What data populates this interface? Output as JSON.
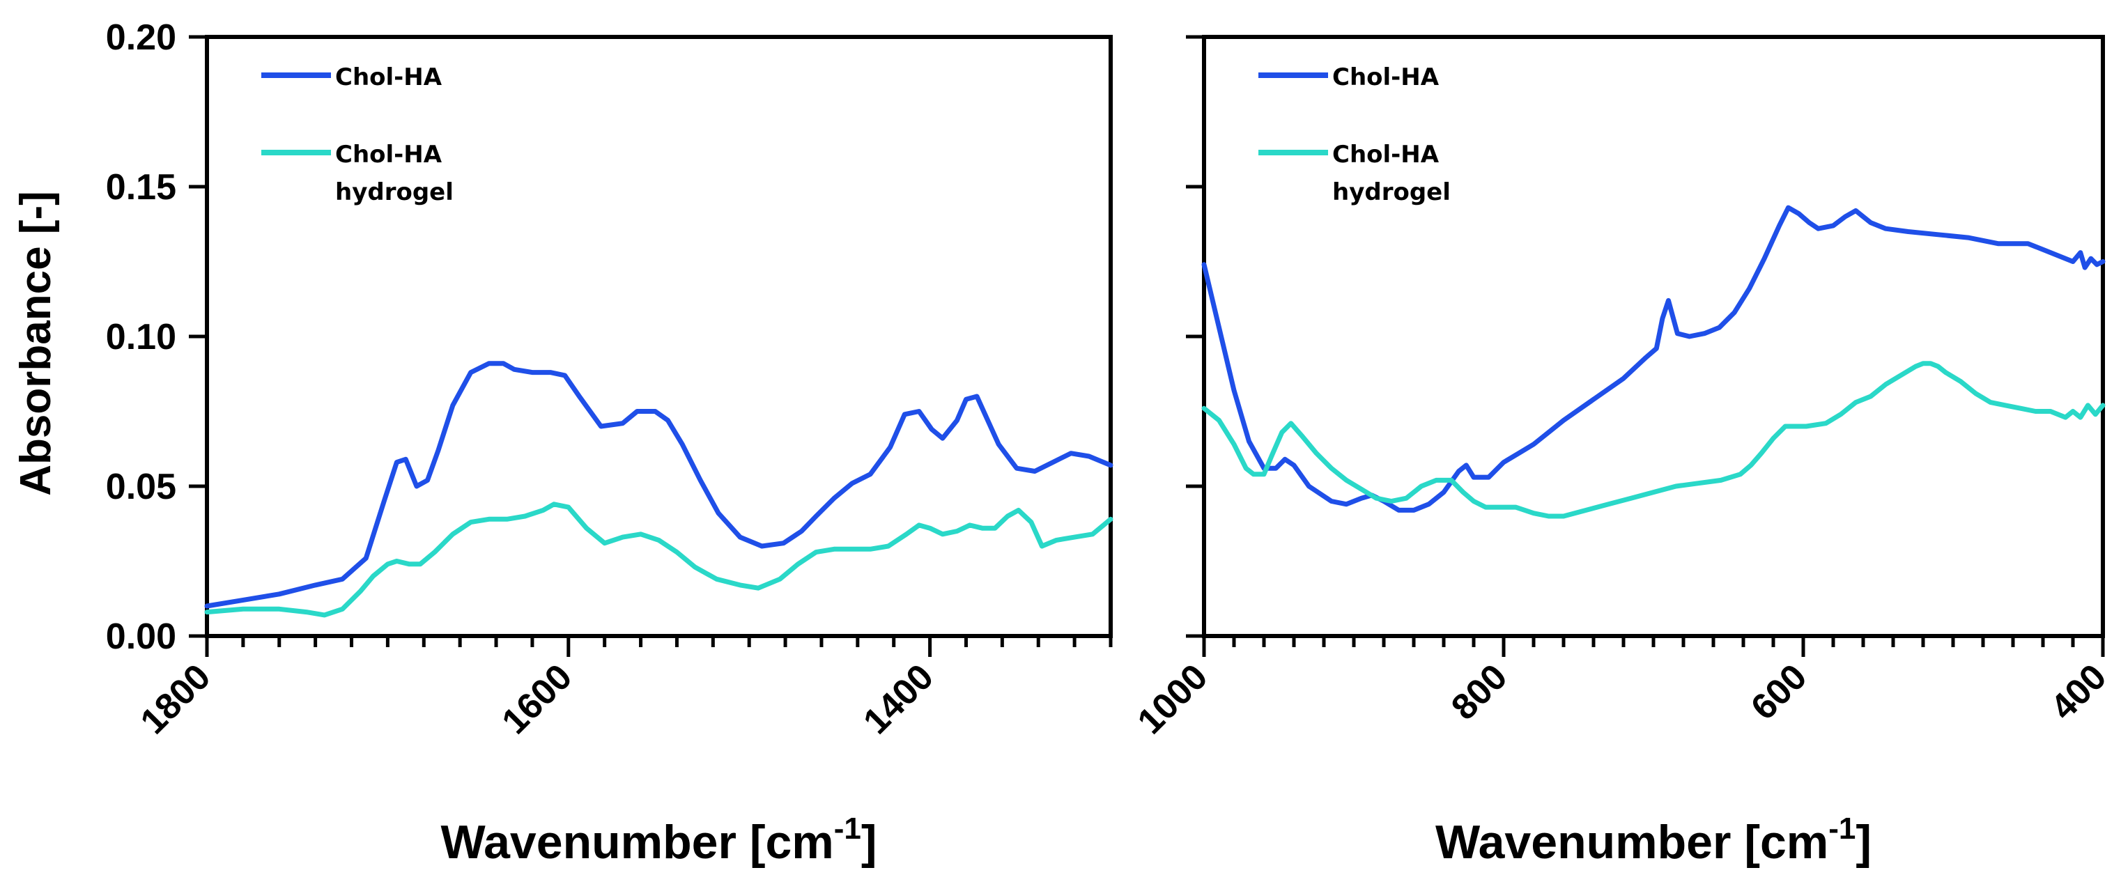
{
  "chart_data": [
    {
      "type": "line",
      "panel": "left",
      "title": "",
      "xlabel_main": "Wavenumber [cm",
      "xlabel_sup": "-1",
      "xlabel_end": "]",
      "ylabel": "Absorbance [-]",
      "xlim": [
        1800,
        1300
      ],
      "ylim": [
        0,
        0.2
      ],
      "x_major_ticks": [
        1800,
        1600,
        1400
      ],
      "x_tick_labels": [
        "1800",
        "1600",
        "1400"
      ],
      "x_minor_step": 20,
      "y_major_ticks": [
        0,
        0.05,
        0.1,
        0.15,
        0.2
      ],
      "y_tick_labels": [
        "0.00",
        "0.05",
        "0.10",
        "0.15",
        "0.20"
      ],
      "legend_location": "top-left",
      "series": [
        {
          "name": "Chol-HA",
          "legend_lines": [
            "Chol-HA"
          ],
          "color": "#1f4fe8",
          "x": [
            1800,
            1780,
            1760,
            1740,
            1725,
            1712,
            1702,
            1695,
            1690,
            1684,
            1678,
            1672,
            1664,
            1654,
            1644,
            1636,
            1630,
            1620,
            1610,
            1602,
            1594,
            1582,
            1570,
            1562,
            1552,
            1545,
            1537,
            1527,
            1517,
            1505,
            1493,
            1481,
            1471,
            1463,
            1453,
            1443,
            1433,
            1422,
            1414,
            1406,
            1399,
            1393,
            1385,
            1380,
            1374,
            1368,
            1362,
            1352,
            1342,
            1332,
            1322,
            1312,
            1300
          ],
          "y": [
            0.01,
            0.012,
            0.014,
            0.017,
            0.019,
            0.026,
            0.045,
            0.058,
            0.059,
            0.05,
            0.052,
            0.062,
            0.077,
            0.088,
            0.091,
            0.091,
            0.089,
            0.088,
            0.088,
            0.087,
            0.08,
            0.07,
            0.071,
            0.075,
            0.075,
            0.072,
            0.064,
            0.052,
            0.041,
            0.033,
            0.03,
            0.031,
            0.035,
            0.04,
            0.046,
            0.051,
            0.054,
            0.063,
            0.074,
            0.075,
            0.069,
            0.066,
            0.072,
            0.079,
            0.08,
            0.072,
            0.064,
            0.056,
            0.055,
            0.058,
            0.061,
            0.06,
            0.057
          ]
        },
        {
          "name": "Chol-HA hydrogel",
          "legend_lines": [
            "Chol-HA",
            "hydrogel"
          ],
          "color": "#2ad8c8",
          "x": [
            1800,
            1780,
            1760,
            1745,
            1735,
            1725,
            1715,
            1708,
            1700,
            1695,
            1688,
            1682,
            1674,
            1664,
            1654,
            1644,
            1634,
            1624,
            1614,
            1608,
            1600,
            1590,
            1580,
            1570,
            1560,
            1550,
            1540,
            1530,
            1518,
            1505,
            1495,
            1483,
            1473,
            1463,
            1453,
            1443,
            1433,
            1423,
            1413,
            1406,
            1400,
            1393,
            1385,
            1378,
            1371,
            1364,
            1357,
            1351,
            1344,
            1338,
            1330,
            1320,
            1310,
            1300
          ],
          "y": [
            0.008,
            0.009,
            0.009,
            0.008,
            0.007,
            0.009,
            0.015,
            0.02,
            0.024,
            0.025,
            0.024,
            0.024,
            0.028,
            0.034,
            0.038,
            0.039,
            0.039,
            0.04,
            0.042,
            0.044,
            0.043,
            0.036,
            0.031,
            0.033,
            0.034,
            0.032,
            0.028,
            0.023,
            0.019,
            0.017,
            0.016,
            0.019,
            0.024,
            0.028,
            0.029,
            0.029,
            0.029,
            0.03,
            0.034,
            0.037,
            0.036,
            0.034,
            0.035,
            0.037,
            0.036,
            0.036,
            0.04,
            0.042,
            0.038,
            0.03,
            0.032,
            0.033,
            0.034,
            0.039
          ]
        }
      ]
    },
    {
      "type": "line",
      "panel": "right",
      "title": "",
      "xlabel_main": "Wavenumber [cm",
      "xlabel_sup": "-1",
      "xlabel_end": "]",
      "ylabel": "",
      "xlim": [
        1000,
        400
      ],
      "ylim": [
        0,
        0.2
      ],
      "x_major_ticks": [
        1000,
        800,
        600,
        400
      ],
      "x_tick_labels": [
        "1000",
        "800",
        "600",
        "400"
      ],
      "x_minor_step": 20,
      "y_major_ticks": [
        0,
        0.05,
        0.1,
        0.15,
        0.2
      ],
      "y_tick_labels": [],
      "legend_location": "top-left",
      "series": [
        {
          "name": "Chol-HA",
          "legend_lines": [
            "Chol-HA"
          ],
          "color": "#1f4fe8",
          "x": [
            1000,
            990,
            980,
            970,
            960,
            952,
            946,
            940,
            930,
            915,
            905,
            895,
            888,
            880,
            870,
            860,
            850,
            840,
            830,
            825,
            820,
            810,
            800,
            790,
            780,
            760,
            740,
            720,
            705,
            698,
            694,
            690,
            684,
            676,
            666,
            656,
            646,
            636,
            626,
            616,
            610,
            603,
            596,
            590,
            580,
            572,
            565,
            560,
            555,
            545,
            530,
            510,
            490,
            470,
            450,
            440,
            430,
            420,
            415,
            412,
            408,
            404,
            400
          ],
          "y": [
            0.124,
            0.103,
            0.082,
            0.065,
            0.056,
            0.056,
            0.059,
            0.057,
            0.05,
            0.045,
            0.044,
            0.046,
            0.047,
            0.045,
            0.042,
            0.042,
            0.044,
            0.048,
            0.055,
            0.057,
            0.053,
            0.053,
            0.058,
            0.061,
            0.064,
            0.072,
            0.079,
            0.086,
            0.093,
            0.096,
            0.106,
            0.112,
            0.101,
            0.1,
            0.101,
            0.103,
            0.108,
            0.116,
            0.126,
            0.137,
            0.143,
            0.141,
            0.138,
            0.136,
            0.137,
            0.14,
            0.142,
            0.14,
            0.138,
            0.136,
            0.135,
            0.134,
            0.133,
            0.131,
            0.131,
            0.129,
            0.127,
            0.125,
            0.128,
            0.123,
            0.126,
            0.124,
            0.125
          ]
        },
        {
          "name": "Chol-HA hydrogel",
          "legend_lines": [
            "Chol-HA",
            "hydrogel"
          ],
          "color": "#2ad8c8",
          "x": [
            1000,
            990,
            980,
            972,
            967,
            960,
            955,
            948,
            942,
            935,
            925,
            915,
            905,
            895,
            885,
            875,
            865,
            855,
            845,
            835,
            827,
            820,
            812,
            802,
            792,
            780,
            770,
            760,
            745,
            730,
            715,
            700,
            685,
            670,
            655,
            642,
            635,
            628,
            620,
            612,
            605,
            598,
            585,
            575,
            565,
            555,
            545,
            535,
            525,
            520,
            515,
            510,
            505,
            495,
            485,
            475,
            465,
            455,
            445,
            435,
            425,
            420,
            415,
            410,
            405,
            400
          ],
          "y": [
            0.076,
            0.072,
            0.064,
            0.056,
            0.054,
            0.054,
            0.06,
            0.068,
            0.071,
            0.067,
            0.061,
            0.056,
            0.052,
            0.049,
            0.046,
            0.045,
            0.046,
            0.05,
            0.052,
            0.052,
            0.048,
            0.045,
            0.043,
            0.043,
            0.043,
            0.041,
            0.04,
            0.04,
            0.042,
            0.044,
            0.046,
            0.048,
            0.05,
            0.051,
            0.052,
            0.054,
            0.057,
            0.061,
            0.066,
            0.07,
            0.07,
            0.07,
            0.071,
            0.074,
            0.078,
            0.08,
            0.084,
            0.087,
            0.09,
            0.091,
            0.091,
            0.09,
            0.088,
            0.085,
            0.081,
            0.078,
            0.077,
            0.076,
            0.075,
            0.075,
            0.073,
            0.075,
            0.073,
            0.077,
            0.074,
            0.077
          ]
        }
      ]
    }
  ]
}
